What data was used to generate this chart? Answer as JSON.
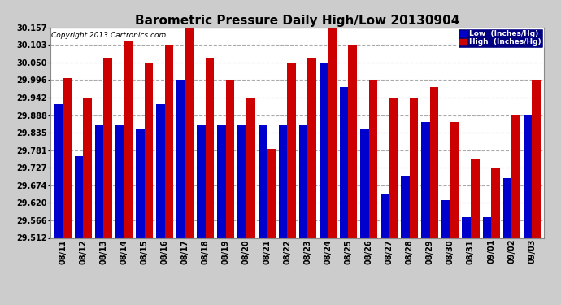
{
  "title": "Barometric Pressure Daily High/Low 20130904",
  "copyright": "Copyright 2013 Cartronics.com",
  "legend_low": "Low  (Inches/Hg)",
  "legend_high": "High  (Inches/Hg)",
  "dates": [
    "08/11",
    "08/12",
    "08/13",
    "08/14",
    "08/15",
    "08/16",
    "08/17",
    "08/18",
    "08/19",
    "08/20",
    "08/21",
    "08/22",
    "08/23",
    "08/24",
    "08/25",
    "08/26",
    "08/27",
    "08/28",
    "08/29",
    "08/30",
    "08/31",
    "09/01",
    "09/02",
    "09/03"
  ],
  "low_values": [
    29.921,
    29.763,
    29.858,
    29.858,
    29.848,
    29.921,
    29.996,
    29.858,
    29.858,
    29.858,
    29.858,
    29.858,
    29.858,
    30.05,
    29.975,
    29.848,
    29.648,
    29.7,
    29.868,
    29.628,
    29.575,
    29.575,
    29.695,
    29.888
  ],
  "high_values": [
    30.003,
    29.942,
    30.065,
    30.115,
    30.05,
    30.103,
    30.157,
    30.065,
    29.996,
    29.942,
    29.785,
    30.05,
    30.065,
    30.157,
    30.103,
    29.996,
    29.942,
    29.942,
    29.975,
    29.868,
    29.752,
    29.727,
    29.888,
    29.996
  ],
  "bar_color_low": "#0000cc",
  "bar_color_high": "#cc0000",
  "ylim_min": 29.512,
  "ylim_max": 30.157,
  "yticks": [
    29.512,
    29.566,
    29.62,
    29.674,
    29.727,
    29.781,
    29.835,
    29.888,
    29.942,
    29.996,
    30.05,
    30.103,
    30.157
  ],
  "background_color": "#cccccc",
  "plot_bg_color": "#ffffff",
  "grid_color": "#aaaaaa",
  "title_fontsize": 11,
  "tick_fontsize": 7,
  "bar_width": 0.42,
  "figwidth": 6.9,
  "figheight": 3.75,
  "dpi": 100
}
